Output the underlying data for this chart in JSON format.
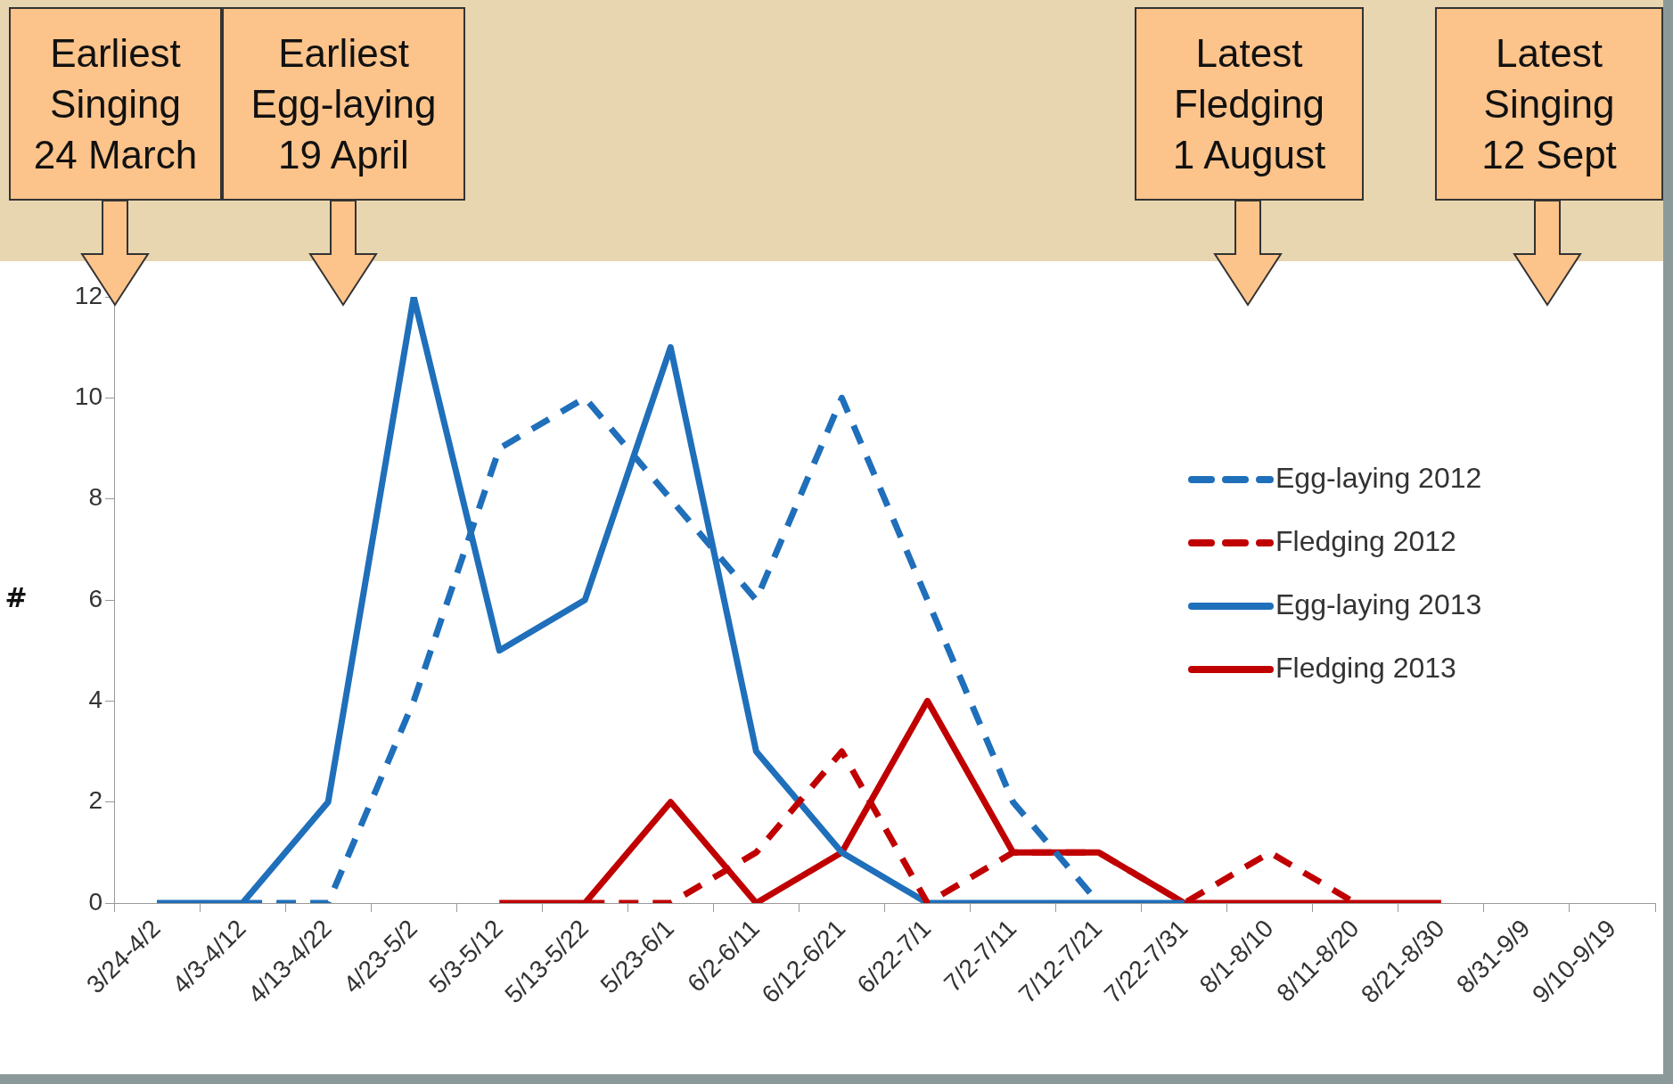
{
  "chart_data": {
    "type": "line",
    "ylabel": "#",
    "categories": [
      "3/24-4/2",
      "4/3-4/12",
      "4/13-4/22",
      "4/23-5/2",
      "5/3-5/12",
      "5/13-5/22",
      "5/23-6/1",
      "6/2-6/11",
      "6/12-6/21",
      "6/22-7/1",
      "7/2-7/11",
      "7/12-7/21",
      "7/22-7/31",
      "8/1-8/10",
      "8/11-8/20",
      "8/21-8/30",
      "8/31-9/9",
      "9/10-9/19"
    ],
    "series": [
      {
        "name": "Egg-laying 2012",
        "color": "#1f6fba",
        "line_style": "dashed",
        "values": [
          null,
          0,
          0,
          4,
          9,
          10,
          8,
          6,
          10,
          6,
          2,
          0,
          null,
          null,
          null,
          null,
          null,
          null
        ]
      },
      {
        "name": "Fledging 2012",
        "color": "#c00000",
        "line_style": "dashed",
        "values": [
          null,
          null,
          null,
          null,
          null,
          0,
          0,
          1,
          3,
          0,
          1,
          1,
          0,
          1,
          0,
          null,
          null,
          null
        ]
      },
      {
        "name": "Egg-laying 2013",
        "color": "#1f6fba",
        "line_style": "solid",
        "values": [
          0,
          0,
          2,
          12,
          5,
          6,
          11,
          3,
          1,
          0,
          0,
          0,
          0,
          null,
          null,
          null,
          null,
          null
        ]
      },
      {
        "name": "Fledging 2013",
        "color": "#c00000",
        "line_style": "solid",
        "values": [
          null,
          null,
          null,
          null,
          0,
          0,
          2,
          0,
          1,
          4,
          1,
          1,
          0,
          0,
          0,
          0,
          null,
          null
        ]
      }
    ],
    "ylim": [
      0,
      12
    ],
    "yticks": [
      0,
      2,
      4,
      6,
      8,
      10,
      12
    ],
    "grid": false,
    "legend": "right",
    "marker": "none",
    "annotations": [
      "Earliest\nSinging\n24 March",
      "Earliest\nEgg-laying\n19 April",
      "Latest\nFledging\n1 August",
      "Latest\nSinging\n12 Sept"
    ]
  }
}
